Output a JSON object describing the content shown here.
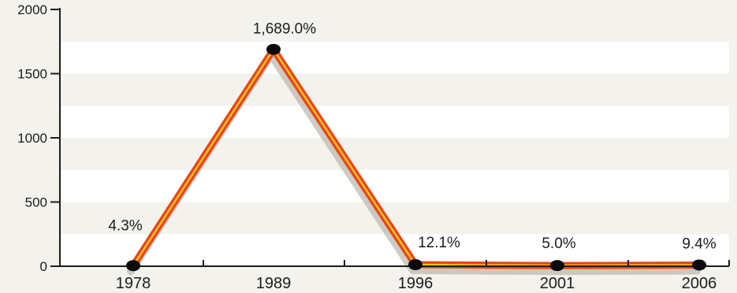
{
  "chart_data": {
    "type": "line",
    "title": "",
    "xlabel": "",
    "ylabel": "",
    "categories": [
      "1978",
      "1989",
      "1996",
      "2001",
      "2006"
    ],
    "values": [
      4.3,
      1689.0,
      12.1,
      5.0,
      9.4
    ],
    "data_labels": [
      "4.3%",
      "1,689.0%",
      "12.1%",
      "5.0%",
      "9.4%"
    ],
    "y_ticks": [
      0,
      500,
      1000,
      1500,
      2000
    ],
    "ylim": [
      0,
      2000
    ],
    "grid": "alternating horizontal bands",
    "legend": "none",
    "colors": {
      "line_outer": "#e8451c",
      "line_inner": "#f6c21a",
      "marker": "#0b0b0b",
      "band_light": "#ffffff",
      "band_dark": "#f3f2ec",
      "axis": "#1c1c1c"
    }
  }
}
